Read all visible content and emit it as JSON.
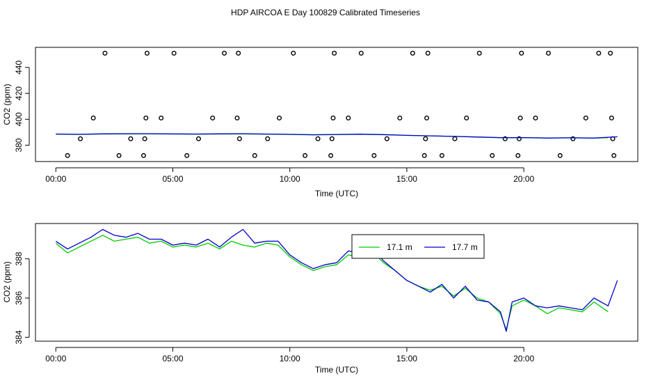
{
  "figure": {
    "title": "HDP AIRCOA E  Day 100829  Calibrated Timeseries"
  },
  "chart_data": [
    {
      "type": "scatter",
      "title": "",
      "xlabel": "Time (UTC)",
      "ylabel": "CO2 (ppm)",
      "xlim": [
        -0.87,
        24.87
      ],
      "ylim": [
        367.4,
        455.5
      ],
      "x_ticks": [
        0,
        5,
        10,
        15,
        20
      ],
      "x_tick_labels": [
        "00:00",
        "05:00",
        "10:00",
        "15:00",
        "20:00"
      ],
      "y_ticks": [
        380,
        400,
        420,
        440
      ],
      "y_tick_labels": [
        "380",
        "400",
        "420",
        "440"
      ],
      "grid": false,
      "series": [
        {
          "kind": "points",
          "color": "#000000",
          "x": [
            0.5,
            1.05,
            1.6,
            2.1,
            2.7,
            3.2,
            3.75,
            3.8,
            3.85,
            3.9,
            4.5,
            5.05,
            5.6,
            6.1,
            6.7,
            7.2,
            7.75,
            7.8,
            7.85,
            8.5,
            9.05,
            9.55,
            10.15,
            10.65,
            11.2,
            11.75,
            11.8,
            11.85,
            11.9,
            12.5,
            13.05,
            13.6,
            14.15,
            14.7,
            15.25,
            15.75,
            15.8,
            15.85,
            15.9,
            16.5,
            17.05,
            17.55,
            18.1,
            18.65,
            19.2,
            19.75,
            19.8,
            19.85,
            19.9,
            20.5,
            21.05,
            21.55,
            22.1,
            22.65,
            23.2,
            23.7,
            23.75,
            23.8,
            23.85
          ],
          "y": [
            372,
            385,
            401,
            451,
            372,
            385,
            372,
            385,
            401,
            451,
            401,
            451,
            372,
            385,
            401,
            451,
            401,
            451,
            385,
            372,
            385,
            401,
            451,
            372,
            385,
            372,
            385,
            401,
            451,
            401,
            451,
            372,
            385,
            401,
            451,
            372,
            385,
            401,
            451,
            372,
            385,
            401,
            451,
            372,
            385,
            372,
            385,
            401,
            451,
            401,
            451,
            372,
            385,
            401,
            451,
            451,
            401,
            385,
            372
          ]
        },
        {
          "kind": "line",
          "color": "#00cc00",
          "x": [
            0,
            1,
            2,
            3,
            4,
            5,
            6,
            7,
            8,
            9,
            10,
            11,
            12,
            13,
            14,
            15,
            16,
            17,
            18,
            19,
            20,
            21,
            22,
            23,
            23.6
          ],
          "y": [
            388.5,
            388.3,
            388.6,
            388.7,
            388.8,
            388.6,
            388.5,
            388.6,
            388.7,
            388.5,
            388.3,
            388.0,
            388.2,
            388.4,
            388.1,
            387.6,
            387.2,
            386.8,
            386.4,
            385.9,
            385.8,
            385.6,
            385.7,
            385.5,
            385.8
          ]
        },
        {
          "kind": "line",
          "color": "#0000cc",
          "x": [
            0,
            1,
            2,
            3,
            4,
            5,
            6,
            7,
            8,
            9,
            10,
            11,
            12,
            13,
            14,
            15,
            16,
            17,
            18,
            19,
            20,
            21,
            22,
            23,
            24
          ],
          "y": [
            388.6,
            388.4,
            388.8,
            388.9,
            388.9,
            388.7,
            388.6,
            388.8,
            388.9,
            388.6,
            388.4,
            388.1,
            388.3,
            388.5,
            388.2,
            387.6,
            387.2,
            386.8,
            386.3,
            385.8,
            385.9,
            385.5,
            385.7,
            385.5,
            386.5
          ]
        }
      ]
    },
    {
      "type": "line",
      "title": "",
      "xlabel": "Time (UTC)",
      "ylabel": "CO2 (ppm)",
      "xlim": [
        -0.87,
        24.87
      ],
      "ylim": [
        383.8,
        389.8
      ],
      "x_ticks": [
        0,
        5,
        10,
        15,
        20
      ],
      "x_tick_labels": [
        "00:00",
        "05:00",
        "10:00",
        "15:00",
        "20:00"
      ],
      "y_ticks": [
        384,
        386,
        388
      ],
      "y_tick_labels": [
        "384",
        "386",
        "388"
      ],
      "grid": false,
      "legend_position": "top-center",
      "series": [
        {
          "name": "17.1 m",
          "color": "#00cc00",
          "x": [
            0,
            0.5,
            1,
            1.5,
            2,
            2.5,
            3,
            3.5,
            4,
            4.5,
            5,
            5.5,
            6,
            6.5,
            7,
            7.5,
            8,
            8.5,
            9,
            9.5,
            10,
            10.5,
            11,
            11.5,
            12,
            12.5,
            13,
            13.5,
            14,
            14.5,
            15,
            15.5,
            16,
            16.5,
            17,
            17.5,
            18,
            18.5,
            19,
            19.25,
            19.5,
            20,
            20.5,
            21,
            21.5,
            22,
            22.5,
            23,
            23.6
          ],
          "y": [
            388.8,
            388.3,
            388.6,
            388.9,
            389.2,
            388.9,
            389.0,
            389.1,
            388.8,
            388.9,
            388.6,
            388.7,
            388.6,
            388.8,
            388.5,
            388.9,
            388.7,
            388.6,
            388.8,
            388.7,
            388.1,
            387.7,
            387.4,
            387.6,
            387.7,
            388.2,
            388.1,
            388.4,
            387.8,
            387.4,
            386.9,
            386.6,
            386.4,
            386.6,
            386.1,
            386.5,
            386.0,
            385.8,
            385.2,
            384.4,
            385.6,
            385.9,
            385.6,
            385.2,
            385.5,
            385.4,
            385.3,
            385.8,
            385.3
          ]
        },
        {
          "name": "17.7 m",
          "color": "#0000cc",
          "x": [
            0,
            0.5,
            1,
            1.5,
            2,
            2.5,
            3,
            3.5,
            4,
            4.5,
            5,
            5.5,
            6,
            6.5,
            7,
            7.5,
            8,
            8.5,
            9,
            9.5,
            10,
            10.5,
            11,
            11.5,
            12,
            12.5,
            13,
            13.5,
            14,
            14.5,
            15,
            15.5,
            16,
            16.5,
            17,
            17.5,
            18,
            18.5,
            19,
            19.25,
            19.5,
            20,
            20.5,
            21,
            21.5,
            22,
            22.5,
            23,
            23.6,
            24
          ],
          "y": [
            388.9,
            388.5,
            388.8,
            389.1,
            389.5,
            389.2,
            389.1,
            389.3,
            389.0,
            389.0,
            388.7,
            388.8,
            388.7,
            389.0,
            388.6,
            389.1,
            389.5,
            388.8,
            388.9,
            388.9,
            388.2,
            387.8,
            387.5,
            387.7,
            387.8,
            388.4,
            388.3,
            388.6,
            387.9,
            387.4,
            386.9,
            386.6,
            386.3,
            386.7,
            386.0,
            386.6,
            385.9,
            385.8,
            385.3,
            384.3,
            385.8,
            386.0,
            385.6,
            385.5,
            385.6,
            385.5,
            385.4,
            386.0,
            385.6,
            386.9
          ]
        }
      ]
    }
  ]
}
